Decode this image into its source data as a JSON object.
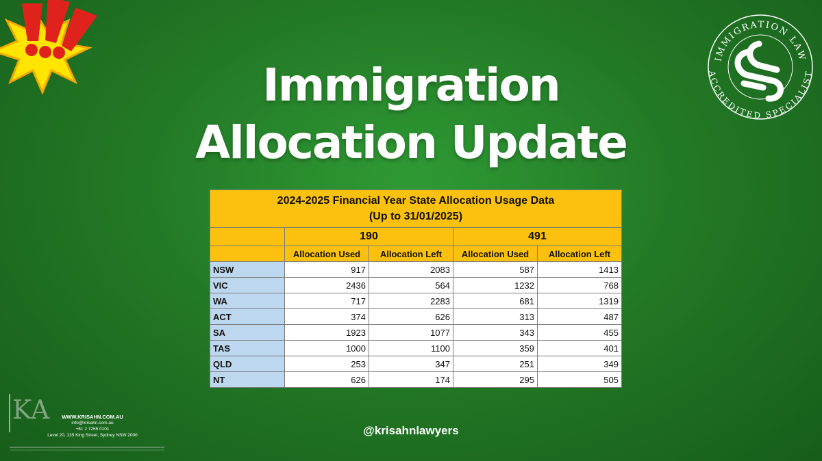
{
  "colors": {
    "background": "#237a26",
    "header_yellow": "#fcc10f",
    "state_blue": "#bdd7ee",
    "burst_yellow": "#ffe500",
    "alert_red": "#e0221c"
  },
  "heading": {
    "line1": "Immigration",
    "line2": "Allocation Update"
  },
  "seal": {
    "text_top": "IMMIGRATION LAW",
    "text_bottom": "ACCREDITED SPECIALIST"
  },
  "table": {
    "title": "2024-2025 Financial Year State Allocation Usage Data",
    "subtitle": "(Up to 31/01/2025)",
    "groups": [
      "190",
      "491"
    ],
    "columns": [
      "Allocation Used",
      "Allocation Left",
      "Allocation Used",
      "Allocation Left"
    ],
    "rows": [
      {
        "state": "NSW",
        "v": [
          "917",
          "2083",
          "587",
          "1413"
        ]
      },
      {
        "state": "VIC",
        "v": [
          "2436",
          "564",
          "1232",
          "768"
        ]
      },
      {
        "state": "WA",
        "v": [
          "717",
          "2283",
          "681",
          "1319"
        ]
      },
      {
        "state": "ACT",
        "v": [
          "374",
          "626",
          "313",
          "487"
        ]
      },
      {
        "state": "SA",
        "v": [
          "1923",
          "1077",
          "343",
          "455"
        ]
      },
      {
        "state": "TAS",
        "v": [
          "1000",
          "1100",
          "359",
          "401"
        ]
      },
      {
        "state": "QLD",
        "v": [
          "253",
          "347",
          "251",
          "349"
        ]
      },
      {
        "state": "NT",
        "v": [
          "626",
          "174",
          "295",
          "505"
        ]
      }
    ]
  },
  "social_handle": "@krisahnlawyers",
  "logo": {
    "mark": "KA"
  },
  "contact": {
    "website": "WWW.KRISAHN.COM.AU",
    "email": "info@krisahn.com.au",
    "phone": "+61 2 7255 0101",
    "address": "Level 20, 135 King Street, Sydney NSW 2000"
  }
}
